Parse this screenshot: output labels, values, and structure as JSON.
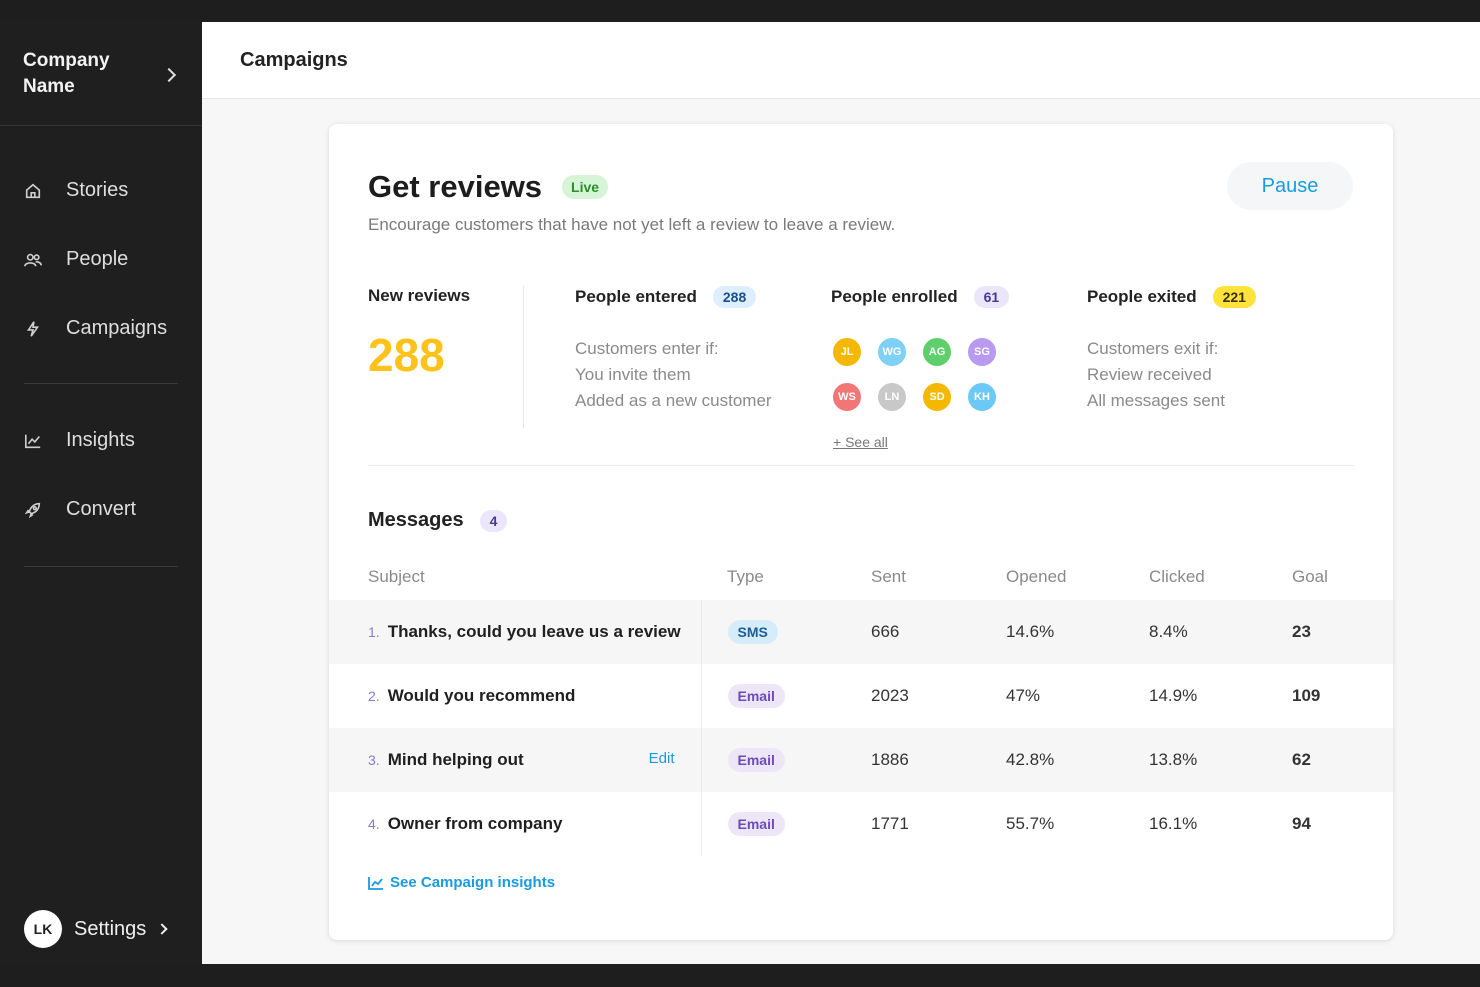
{
  "sidebar": {
    "company_name": "Company Name",
    "items": [
      {
        "label": "Stories",
        "icon": "home-icon"
      },
      {
        "label": "People",
        "icon": "people-icon"
      },
      {
        "label": "Campaigns",
        "icon": "bolt-icon"
      },
      {
        "label": "Insights",
        "icon": "chart-icon"
      },
      {
        "label": "Convert",
        "icon": "rocket-icon"
      }
    ],
    "user_initials": "LK",
    "settings_label": "Settings"
  },
  "header": {
    "title": "Campaigns"
  },
  "campaign": {
    "title": "Get reviews",
    "status": "Live",
    "description": "Encourage customers that have not yet left a review to leave a review.",
    "pause_label": "Pause",
    "new_reviews": {
      "label": "New reviews",
      "value": "288"
    },
    "entered": {
      "label": "People entered",
      "count": "288",
      "lines": [
        "Customers enter if:",
        "You invite them",
        "Added as a new customer"
      ]
    },
    "enrolled": {
      "label": "People enrolled",
      "count": "61",
      "avatars": [
        {
          "initials": "JL",
          "color": "#f5b800"
        },
        {
          "initials": "WG",
          "color": "#7fd0f5"
        },
        {
          "initials": "AG",
          "color": "#5fcf6b"
        },
        {
          "initials": "SG",
          "color": "#b89af0"
        },
        {
          "initials": "WS",
          "color": "#f27676"
        },
        {
          "initials": "LN",
          "color": "#c8c8c8"
        },
        {
          "initials": "SD",
          "color": "#f5b800"
        },
        {
          "initials": "KH",
          "color": "#6cc8f5"
        }
      ],
      "see_all": "+ See all"
    },
    "exited": {
      "label": "People exited",
      "count": "221",
      "lines": [
        "Customers exit if:",
        "Review received",
        "All messages sent"
      ]
    }
  },
  "messages": {
    "title": "Messages",
    "count": "4",
    "columns": [
      "Subject",
      "Type",
      "Sent",
      "Opened",
      "Clicked",
      "Goal"
    ],
    "rows": [
      {
        "num": "1.",
        "subject": "Thanks, could you leave us a review",
        "type": "SMS",
        "sent": "666",
        "opened": "14.6%",
        "clicked": "8.4%",
        "goal": "23"
      },
      {
        "num": "2.",
        "subject": "Would you recommend",
        "type": "Email",
        "sent": "2023",
        "opened": "47%",
        "clicked": "14.9%",
        "goal": "109"
      },
      {
        "num": "3.",
        "subject": "Mind helping out",
        "type": "Email",
        "sent": "1886",
        "opened": "42.8%",
        "clicked": "13.8%",
        "goal": "62",
        "edit": "Edit"
      },
      {
        "num": "4.",
        "subject": "Owner from company",
        "type": "Email",
        "sent": "1771",
        "opened": "55.7%",
        "clicked": "16.1%",
        "goal": "94"
      }
    ],
    "insights_link": "See Campaign insights"
  }
}
